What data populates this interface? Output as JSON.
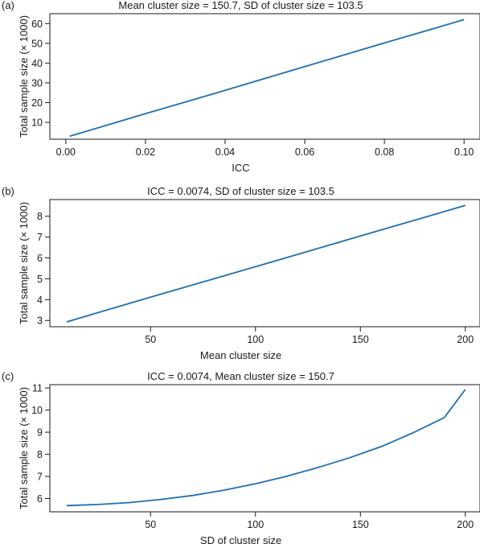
{
  "chart_data": [
    {
      "type": "line",
      "panel_label": "(a)",
      "title": "Mean cluster size = 150.7, SD of cluster size = 103.5",
      "xlabel": "ICC",
      "ylabel": "Total sample size (× 1000)",
      "xlim": [
        -0.004,
        0.104
      ],
      "ylim": [
        1.5,
        65
      ],
      "xticks": [
        0.0,
        0.02,
        0.04,
        0.06,
        0.08,
        0.1
      ],
      "xtick_labels": [
        "0.00",
        "0.02",
        "0.04",
        "0.06",
        "0.08",
        "0.10"
      ],
      "yticks": [
        10,
        20,
        30,
        40,
        50,
        60
      ],
      "ytick_labels": [
        "10",
        "20",
        "30",
        "40",
        "50",
        "60"
      ],
      "color": "#1f6fb0",
      "series": [
        {
          "x": [
            0.001,
            0.02,
            0.04,
            0.06,
            0.08,
            0.1
          ],
          "y": [
            3.0,
            14.4,
            26.2,
            38.2,
            50.2,
            62.0
          ]
        }
      ]
    },
    {
      "type": "line",
      "panel_label": "(b)",
      "title": "ICC = 0.0074, SD of cluster size = 103.5",
      "xlabel": "Mean cluster size",
      "ylabel": "Total sample size (× 1000)",
      "xlim": [
        2,
        207
      ],
      "ylim": [
        2.7,
        8.8
      ],
      "xticks": [
        50,
        100,
        150,
        200
      ],
      "xtick_labels": [
        "50",
        "100",
        "150",
        "200"
      ],
      "yticks": [
        3,
        4,
        5,
        6,
        7,
        8
      ],
      "ytick_labels": [
        "3",
        "4",
        "5",
        "6",
        "7",
        "8"
      ],
      "color": "#1f6fb0",
      "series": [
        {
          "x": [
            10,
            50,
            100,
            150,
            200
          ],
          "y": [
            2.93,
            4.12,
            5.58,
            7.05,
            8.52
          ]
        }
      ]
    },
    {
      "type": "line",
      "panel_label": "(c)",
      "title": "ICC = 0.0074, Mean cluster size = 150.7",
      "xlabel": "SD of cluster size",
      "ylabel": "Total sample size (× 1000)",
      "xlim": [
        2,
        207
      ],
      "ylim": [
        5.4,
        11.15
      ],
      "xticks": [
        50,
        100,
        150,
        200
      ],
      "xtick_labels": [
        "50",
        "100",
        "150",
        "200"
      ],
      "yticks": [
        6,
        7,
        8,
        9,
        10,
        11
      ],
      "ytick_labels": [
        "6",
        "7",
        "8",
        "9",
        "10",
        "11"
      ],
      "color": "#1f6fb0",
      "series": [
        {
          "x": [
            10,
            25,
            40,
            55,
            70,
            85,
            100,
            115,
            130,
            145,
            160,
            175,
            190,
            200
          ],
          "y": [
            5.68,
            5.73,
            5.82,
            5.96,
            6.14,
            6.38,
            6.67,
            7.01,
            7.41,
            7.85,
            8.35,
            8.97,
            9.66,
            10.93
          ]
        }
      ]
    }
  ]
}
